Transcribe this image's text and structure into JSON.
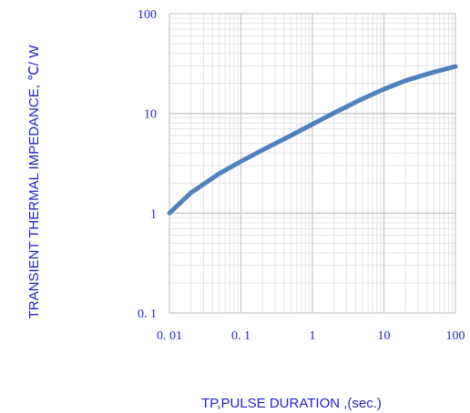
{
  "chart_data": {
    "type": "line",
    "xlabel": "TP,PULSE DURATION ,(sec.)",
    "ylabel": "TRANSIENT THERMAL IMPEDANCE, ℃/ W",
    "x_scale": "log",
    "y_scale": "log",
    "xlim": [
      0.01,
      100
    ],
    "ylim": [
      0.1,
      100
    ],
    "x_tick_labels": [
      "0. 01",
      "0. 1",
      "1",
      "10",
      "100"
    ],
    "y_tick_labels": [
      "0. 1",
      "1",
      "10",
      "100"
    ],
    "grid": true,
    "series": [
      {
        "x": [
          0.01,
          0.02,
          0.05,
          0.1,
          0.2,
          0.5,
          1,
          2,
          5,
          10,
          20,
          50,
          100
        ],
        "y": [
          1.0,
          1.6,
          2.5,
          3.3,
          4.3,
          6.0,
          7.8,
          10.1,
          14.0,
          17.5,
          21.3,
          26.0,
          29.5
        ]
      }
    ],
    "colors": {
      "line": "#4f81bd",
      "text": "#1f1fcf",
      "grid_major": "#c8c8c8",
      "grid_minor": "#e4e4e4"
    }
  }
}
